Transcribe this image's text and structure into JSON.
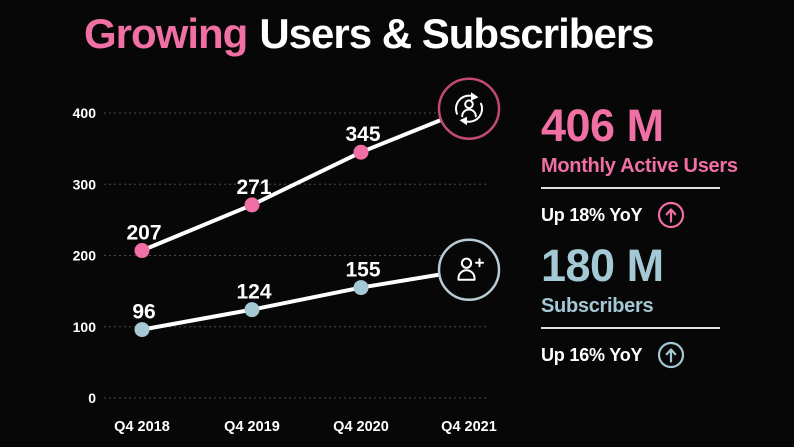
{
  "title": {
    "highlight": "Growing",
    "rest": "Users & Subscribers"
  },
  "chart_data": {
    "type": "line",
    "title": "Growing Users & Subscribers",
    "x_categories": [
      "Q4 2018",
      "Q4 2019",
      "Q4 2020",
      "Q4 2021"
    ],
    "y_ticks": [
      0,
      100,
      200,
      300,
      400
    ],
    "ylim": [
      0,
      430
    ],
    "grid": "horizontal-dashed",
    "legend": "none",
    "line_color": "#ffffff",
    "series": [
      {
        "name": "Monthly Active Users",
        "color": "#f06fa4",
        "ring_color": "#c04a74",
        "values": [
          207,
          271,
          345,
          406
        ],
        "point_labels": [
          "207",
          "271",
          "345"
        ],
        "last_point_icon": "user-sync-icon"
      },
      {
        "name": "Subscribers",
        "color": "#a5c8d5",
        "ring_color": "#b7ccd5",
        "values": [
          96,
          124,
          155,
          180
        ],
        "point_labels": [
          "96",
          "124",
          "155"
        ],
        "last_point_icon": "user-plus-icon"
      }
    ]
  },
  "stats": [
    {
      "value": "406 M",
      "label": "Monthly Active Users",
      "delta": "Up 18% YoY",
      "color": "#f06fa4",
      "icon": "up-arrow-circle-icon"
    },
    {
      "value": "180 M",
      "label": "Subscribers",
      "delta": "Up 16% YoY",
      "color": "#a5c8d5",
      "icon": "up-arrow-circle-icon"
    }
  ],
  "colors": {
    "background": "#070707",
    "pink": "#f06fa4",
    "blue": "#a5c8d5",
    "white": "#ffffff",
    "grid": "#4a4a4a",
    "divider": "#dde1e3"
  }
}
